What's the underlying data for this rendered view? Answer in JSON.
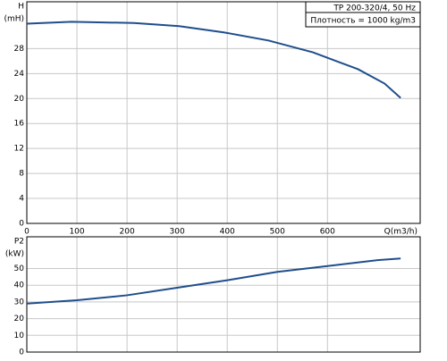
{
  "chart_data": [
    {
      "type": "line",
      "ylabel": "H",
      "yunit": "(mH)",
      "xlabel": "Q(m3/h)",
      "info": [
        "TP 200-320/4, 50 Hz",
        "Плотность = 1000 kg/m3"
      ],
      "x": [
        0,
        89,
        214,
        304,
        393,
        482,
        571,
        661,
        714,
        746
      ],
      "series": [
        {
          "color": "#1f4e8c",
          "values": [
            32,
            32.3,
            32.1,
            31.6,
            30.6,
            29.3,
            27.4,
            24.7,
            22.4,
            20.1
          ]
        }
      ],
      "xlim": [
        0,
        785
      ],
      "ylim": [
        0,
        35.5
      ],
      "xticks": [
        0,
        100,
        200,
        300,
        400,
        500,
        600
      ],
      "yticks": [
        0,
        4,
        8,
        12,
        16,
        20,
        24,
        28
      ],
      "grid": true,
      "xtick_labels": true
    },
    {
      "type": "line",
      "ylabel": "P2",
      "yunit": "(kW)",
      "x": [
        0,
        100,
        200,
        300,
        400,
        500,
        600,
        700,
        746
      ],
      "series": [
        {
          "color": "#1f4e8c",
          "values": [
            29,
            31,
            34,
            38.5,
            43,
            48,
            51.5,
            55,
            56
          ]
        }
      ],
      "xlim": [
        0,
        785
      ],
      "ylim": [
        0,
        69
      ],
      "xticks": [
        0,
        100,
        200,
        300,
        400,
        500,
        600
      ],
      "yticks": [
        0,
        10,
        20,
        30,
        40,
        50
      ],
      "grid": true,
      "xtick_labels": false
    }
  ]
}
